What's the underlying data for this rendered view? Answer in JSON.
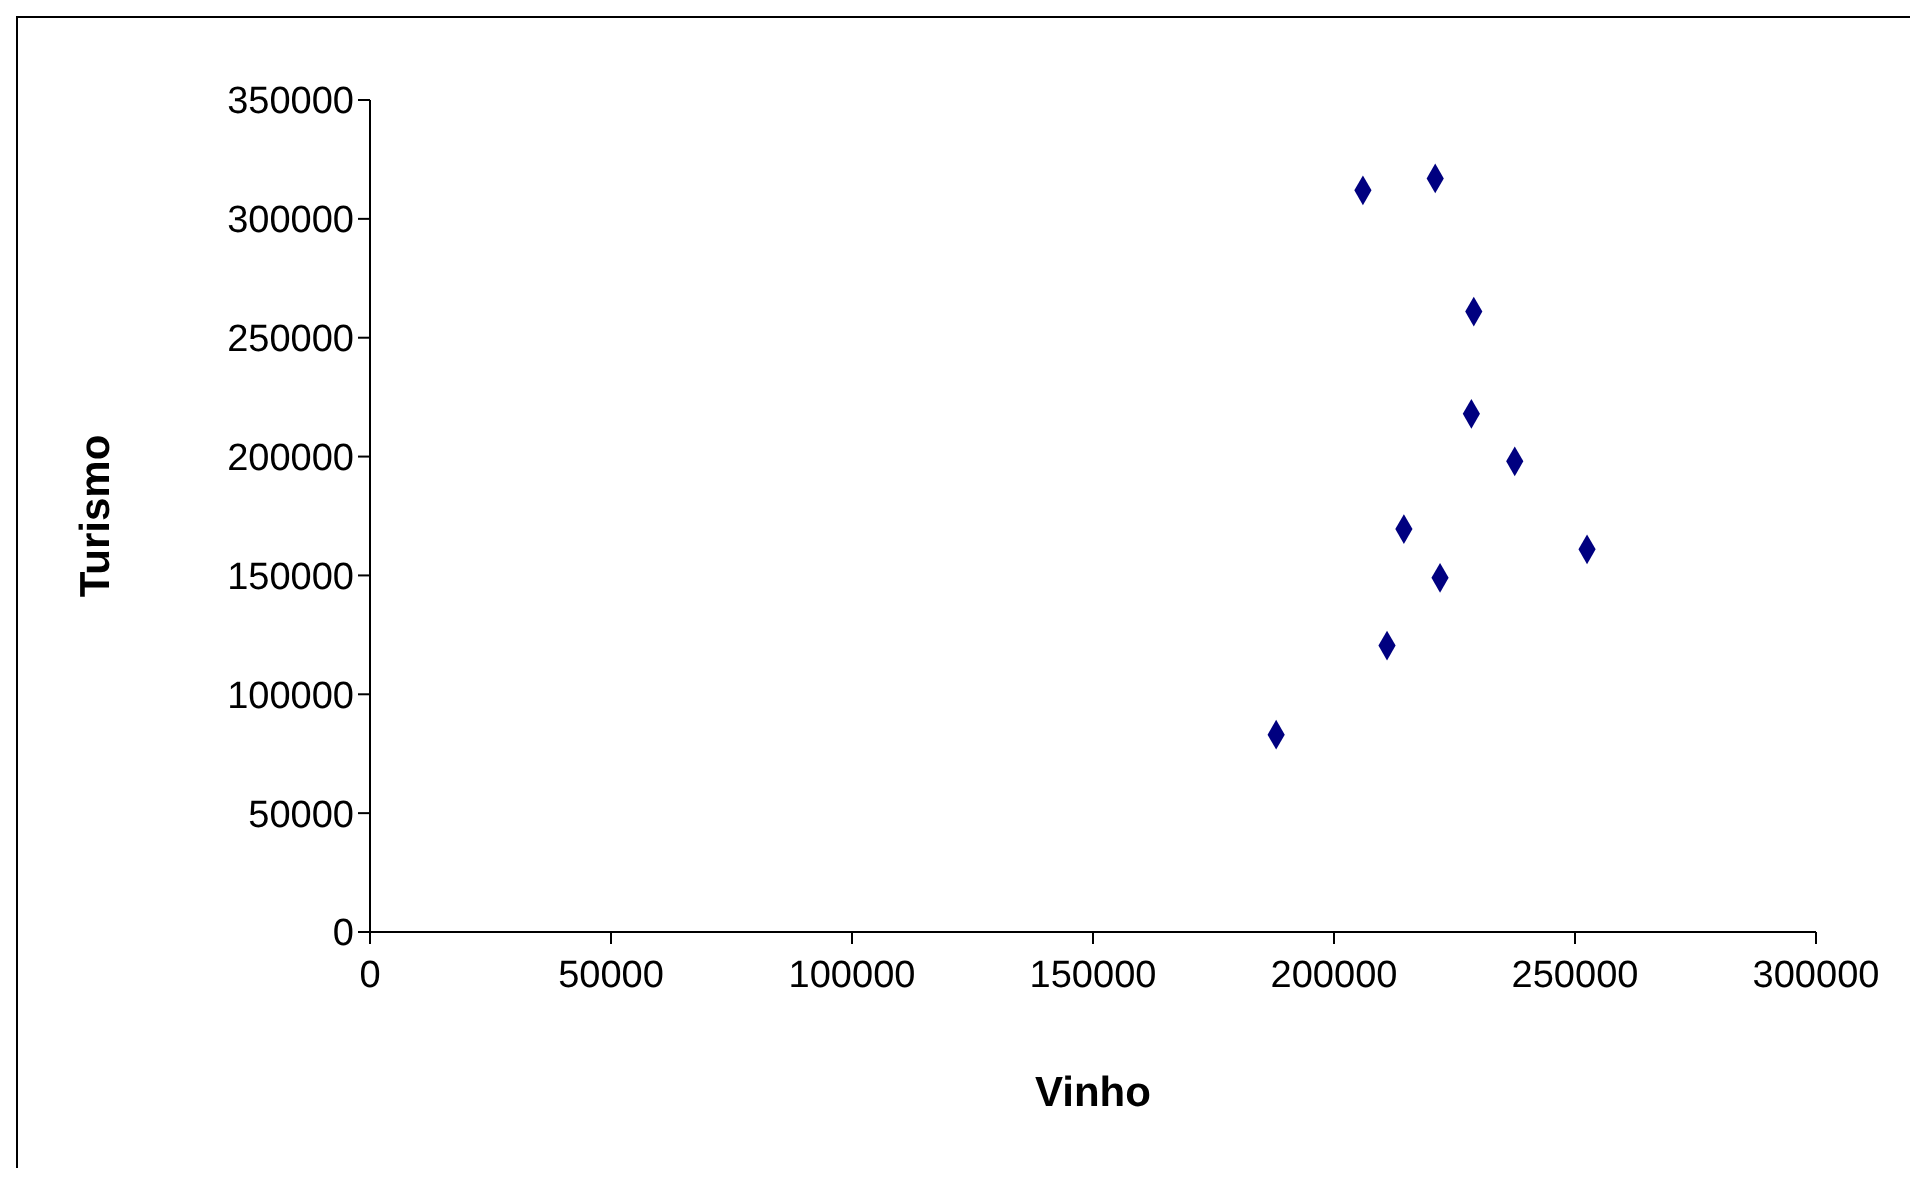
{
  "chart_data": {
    "type": "scatter",
    "xlabel": "Vinho",
    "ylabel": "Turismo",
    "marker": "diamond",
    "grid": false,
    "legend": false,
    "x": [
      206000,
      221000,
      229000,
      228500,
      237500,
      214500,
      252500,
      222000,
      211000,
      188000
    ],
    "series": [
      {
        "color": "#000080",
        "values": [
          312000,
          317000,
          261000,
          218000,
          198000,
          169500,
          161000,
          149000,
          120500,
          83000
        ]
      }
    ],
    "xlim": [
      0,
      300000
    ],
    "xticks": [
      0,
      50000,
      100000,
      150000,
      200000,
      250000,
      300000
    ],
    "ylim": [
      0,
      350000
    ],
    "yticks": [
      0,
      50000,
      100000,
      150000,
      200000,
      250000,
      300000,
      350000
    ]
  }
}
